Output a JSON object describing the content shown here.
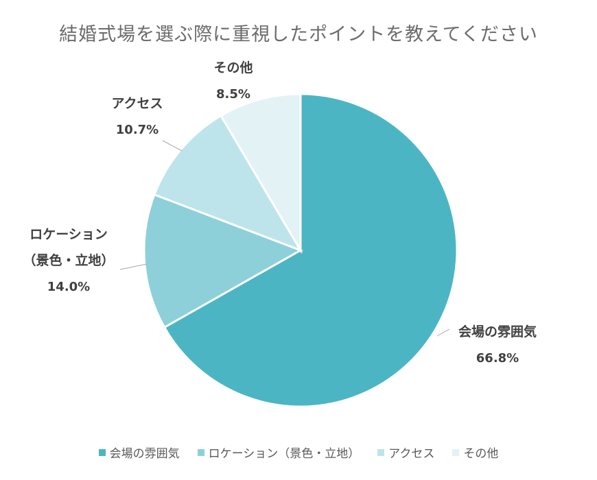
{
  "chart_data": {
    "type": "pie",
    "title": "結婚式場を選ぶ際に重視したポイントを教えてください",
    "slices": [
      {
        "name": "会場の雰囲気",
        "value": 66.8,
        "label": "66.8%",
        "color": "#4cb5c4",
        "text_lines": [
          "会場の雰囲気"
        ]
      },
      {
        "name": "ロケーション（景色・立地）",
        "value": 14.0,
        "label": "14.0%",
        "color": "#8dd0d9",
        "text_lines": [
          "ロケーション",
          "（景色・立地）"
        ]
      },
      {
        "name": "アクセス",
        "value": 10.7,
        "label": "10.7%",
        "color": "#bde4ea",
        "text_lines": [
          "アクセス"
        ]
      },
      {
        "name": "その他",
        "value": 8.5,
        "label": "8.5%",
        "color": "#e3f3f5",
        "text_lines": [
          "その他"
        ]
      }
    ],
    "legend_position": "bottom"
  }
}
